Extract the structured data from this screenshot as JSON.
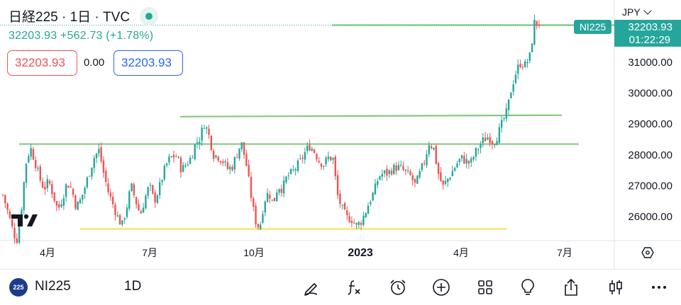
{
  "header": {
    "symbol_title": "日経225 · 1日 · TVC",
    "price_change": "32203.93 +562.73 (+1.78%)",
    "sell_price": "32203.93",
    "spread": "0.00",
    "buy_price": "32203.93",
    "currency": "JPY"
  },
  "price_scale": {
    "ticks": [
      "31000.00",
      "30000.00",
      "29000.00",
      "28000.00",
      "27000.00",
      "26000.00"
    ],
    "symbol_label": "NI225",
    "last_price_label": "32203.93",
    "countdown_label": "01:22:29"
  },
  "time_scale": {
    "labels": [
      "4月",
      "7月",
      "10月",
      "2023",
      "4月",
      "7月"
    ]
  },
  "bottom_bar": {
    "badge": "225",
    "symbol": "NI225",
    "interval": "1D"
  },
  "icons": [
    "live-status-icon",
    "goto-realtime-icon",
    "draw-pen-icon",
    "indicators-fx-icon",
    "alert-clock-icon",
    "add-plus-icon",
    "layout-grid-icon",
    "ideas-bulb-icon",
    "share-icon",
    "chart-type-candles-icon",
    "more-dots-icon",
    "tradingview-logo-icon"
  ],
  "colors": {
    "up": "#26a69a",
    "down": "#ef5350",
    "support_line": "#f5e15a",
    "resistance_line": "#86c97e",
    "accent": "#26a69a"
  },
  "chart_data": {
    "type": "candlestick",
    "title": "日経225 · 1日 · TVC",
    "x_labels": [
      "4月",
      "7月",
      "10月",
      "2023",
      "4月",
      "7月"
    ],
    "ylim": [
      25300,
      32900
    ],
    "y_ticks": [
      26000,
      27000,
      28000,
      29000,
      30000,
      31000
    ],
    "last_price": 32203.93,
    "change": 562.73,
    "change_pct": 1.78,
    "horizontal_lines": [
      {
        "label": "support",
        "price": 25600
      },
      {
        "label": "resistance-1",
        "price": 28350
      },
      {
        "label": "resistance-2",
        "price": 29250
      },
      {
        "label": "last",
        "price": 32203.93
      }
    ],
    "close_path": [
      26700,
      26200,
      25650,
      25200,
      26200,
      27700,
      28250,
      27800,
      27250,
      26900,
      27150,
      26700,
      26200,
      26600,
      27100,
      26900,
      26300,
      26550,
      27000,
      27500,
      27950,
      28150,
      27400,
      26800,
      26400,
      26000,
      25700,
      26300,
      27000,
      26500,
      26050,
      26600,
      27000,
      26500,
      26850,
      27400,
      27800,
      27950,
      27950,
      27500,
      27700,
      27900,
      28350,
      28550,
      29050,
      28600,
      28000,
      27950,
      27800,
      27550,
      27600,
      28000,
      28400,
      27800,
      26800,
      25900,
      25600,
      26500,
      26800,
      26400,
      27000,
      26900,
      27300,
      27400,
      27600,
      27800,
      28100,
      28300,
      28100,
      27800,
      27700,
      27900,
      27900,
      26700,
      26250,
      25950,
      25950,
      25700,
      25800,
      26100,
      26500,
      26800,
      27300,
      27400,
      27400,
      27550,
      27600,
      27550,
      27400,
      27300,
      27000,
      27400,
      27800,
      28400,
      28200,
      27400,
      26950,
      27200,
      27450,
      27700,
      27900,
      27800,
      27700,
      28050,
      28300,
      28500,
      28600,
      28400,
      28650,
      29050,
      29400,
      30200,
      30700,
      31000,
      30900,
      31200,
      32300,
      32200
    ]
  }
}
